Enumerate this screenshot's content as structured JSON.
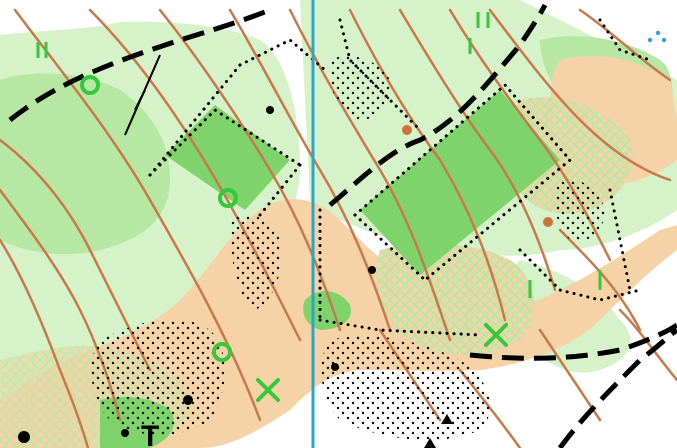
{
  "map": {
    "type": "orienteering-map",
    "colors": {
      "background": "#ffffff",
      "vegetation_light": "#d6f2c8",
      "vegetation_medium": "#b7e8a3",
      "vegetation_dense": "#7fd36b",
      "open_land": "#f6d3a7",
      "contour": "#c8794b",
      "path_black": "#000000",
      "magnetic_north_line": "#2aa7c8",
      "green_symbol": "#35c83a",
      "knoll_brown": "#d0703c"
    },
    "symbols": {
      "dots": "dot-icon",
      "green_circle": "green-circle-icon",
      "green_cross": "green-cross-icon",
      "triangle": "triangle-icon"
    },
    "glyphs": {
      "t_marker": "T"
    }
  }
}
